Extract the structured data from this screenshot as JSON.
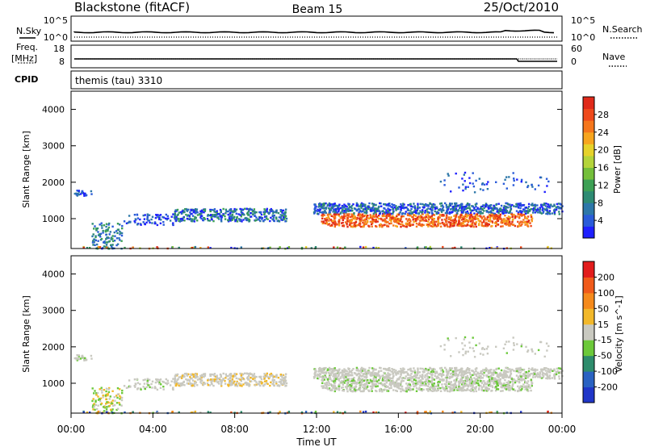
{
  "header": {
    "station": "Blackstone (fitACF)",
    "beam": "Beam 15",
    "date": "25/Oct/2010"
  },
  "nsky_panel": {
    "left_label": "N.Sky",
    "left_ticks": [
      "10^5",
      "10^0"
    ],
    "right_ticks": [
      "10^5",
      "10^0"
    ],
    "right_label": "N.Search"
  },
  "freq_panel": {
    "left_label_1": "Freq.",
    "left_label_2": "[MHz]",
    "left_ticks": [
      "18",
      "8"
    ],
    "right_ticks": [
      "60",
      "0"
    ],
    "right_label": "Nave"
  },
  "cpid": {
    "label": "CPID",
    "value": "themis (tau) 3310"
  },
  "chart_data": [
    {
      "type": "heatmap",
      "name": "power",
      "ylabel": "Slant Range [km]",
      "yticks": [
        "4000",
        "3000",
        "2000",
        "1000"
      ],
      "ytick_values": [
        4000,
        3000,
        2000,
        1000
      ],
      "ylim": [
        180,
        4500
      ],
      "xlim": [
        0,
        24
      ],
      "colorbar": {
        "label": "Power [dB]",
        "ticks": [
          "28",
          "24",
          "20",
          "16",
          "12",
          "8",
          "4"
        ],
        "tick_values": [
          28,
          24,
          20,
          16,
          12,
          8,
          4
        ],
        "range": [
          0,
          32
        ],
        "colors": [
          "#1f20ff",
          "#2a5bd9",
          "#2d77a9",
          "#2e8b73",
          "#3da055",
          "#74bf3a",
          "#b4d43a",
          "#e6d22a",
          "#f7a51e",
          "#f5761c",
          "#ef4a1c",
          "#e02a1a"
        ]
      }
    },
    {
      "type": "heatmap",
      "name": "velocity",
      "ylabel": "Slant Range [km]",
      "yticks": [
        "4000",
        "3000",
        "2000",
        "1000"
      ],
      "ytick_values": [
        4000,
        3000,
        2000,
        1000
      ],
      "ylim": [
        180,
        4500
      ],
      "xlim": [
        0,
        24
      ],
      "colorbar": {
        "label": "Velocity [m s^-1]",
        "ticks": [
          "200",
          "100",
          "50",
          "15",
          "-15",
          "-50",
          "-100",
          "-200"
        ],
        "colors": [
          "#2036c8",
          "#2a62c2",
          "#2e8c6c",
          "#6cc93a",
          "#c9c9c0",
          "#f2b82a",
          "#f58a1c",
          "#f05a1a",
          "#e21c1c"
        ]
      }
    }
  ],
  "x_axis": {
    "ticks": [
      "00:00",
      "04:00",
      "08:00",
      "12:00",
      "16:00",
      "20:00",
      "00:00"
    ],
    "tick_hours": [
      0,
      4,
      8,
      12,
      16,
      20,
      24
    ],
    "label": "Time UT"
  }
}
